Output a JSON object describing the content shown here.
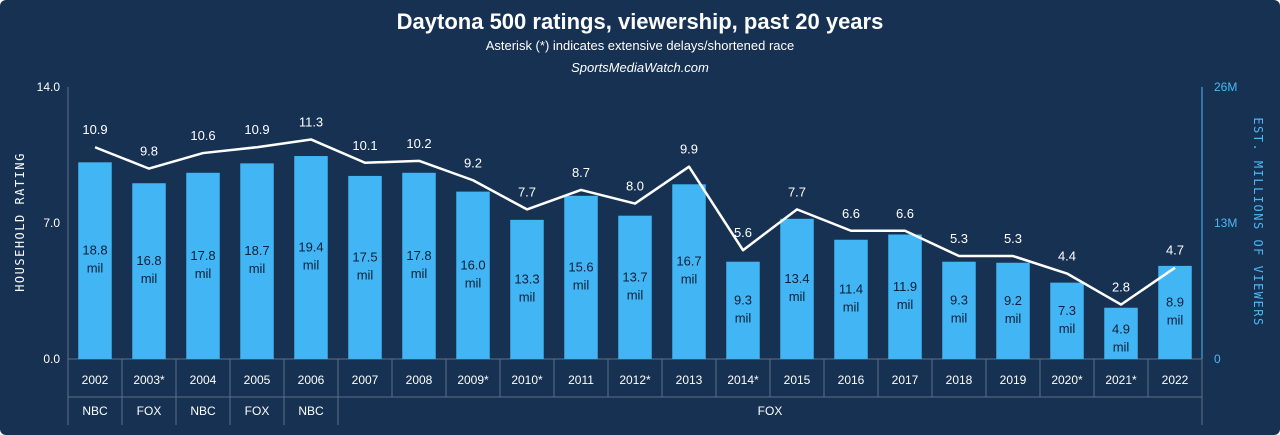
{
  "chart_data": {
    "type": "bar+line",
    "title": "Daytona 500 ratings, viewership, past 20 years",
    "subtitle": "Asterisk (*) indicates extensive delays/shortened race",
    "source": "SportsMediaWatch.com",
    "categories": [
      "2002",
      "2003*",
      "2004",
      "2005",
      "2006",
      "2007",
      "2008",
      "2009*",
      "2010*",
      "2011",
      "2012*",
      "2013",
      "2014*",
      "2015",
      "2016",
      "2017",
      "2018",
      "2019",
      "2020*",
      "2021*",
      "2022"
    ],
    "networks": [
      {
        "label": "NBC",
        "from": 0,
        "to": 0
      },
      {
        "label": "FOX",
        "from": 1,
        "to": 1
      },
      {
        "label": "NBC",
        "from": 2,
        "to": 2
      },
      {
        "label": "FOX",
        "from": 3,
        "to": 3
      },
      {
        "label": "NBC",
        "from": 4,
        "to": 4
      },
      {
        "label": "FOX",
        "from": 5,
        "to": 20
      }
    ],
    "series": [
      {
        "name": "Household rating",
        "kind": "line",
        "axis": "left",
        "color": "#ffffff",
        "values": [
          10.9,
          9.8,
          10.6,
          10.9,
          11.3,
          10.1,
          10.2,
          9.2,
          7.7,
          8.7,
          8.0,
          9.9,
          5.6,
          7.7,
          6.6,
          6.6,
          5.3,
          5.3,
          4.4,
          2.8,
          4.7
        ],
        "labels": [
          "10.9",
          "9.8",
          "10.6",
          "10.9",
          "11.3",
          "10.1",
          "10.2",
          "9.2",
          "7.7",
          "8.7",
          "8.0",
          "9.9",
          "5.6",
          "7.7",
          "6.6",
          "6.6",
          "5.3",
          "5.3",
          "4.4",
          "2.8",
          "4.7"
        ]
      },
      {
        "name": "Est. millions of viewers",
        "kind": "bar",
        "axis": "right",
        "color": "#42b6f5",
        "values": [
          18.8,
          16.8,
          17.8,
          18.7,
          19.4,
          17.5,
          17.8,
          16.0,
          13.3,
          15.6,
          13.7,
          16.7,
          9.3,
          13.4,
          11.4,
          11.9,
          9.3,
          9.2,
          7.3,
          4.9,
          8.9
        ],
        "labels": [
          "18.8",
          "16.8",
          "17.8",
          "18.7",
          "19.4",
          "17.5",
          "17.8",
          "16.0",
          "13.3",
          "15.6",
          "13.7",
          "16.7",
          "9.3",
          "13.4",
          "11.4",
          "11.9",
          "9.3",
          "9.2",
          "7.3",
          "4.9",
          "8.9"
        ],
        "unit_label": "mil"
      }
    ],
    "y_left": {
      "label": "HOUSEHOLD RATING",
      "ylim": [
        0,
        14
      ],
      "ticks": [
        "0.0",
        "7.0",
        "14.0"
      ],
      "tick_values": [
        0,
        7,
        14
      ]
    },
    "y_right": {
      "label": "EST. MILLIONS OF VIEWERS",
      "ylim": [
        0,
        26
      ],
      "ticks": [
        "0",
        "13M",
        "26M"
      ],
      "tick_values": [
        0,
        13,
        26
      ]
    }
  },
  "colors": {
    "background": "#163152",
    "bar": "#42b6f5",
    "line": "#ffffff",
    "accent": "#4db8f5",
    "bar_text": "#0d1f36",
    "grid": "#5d6f88"
  }
}
